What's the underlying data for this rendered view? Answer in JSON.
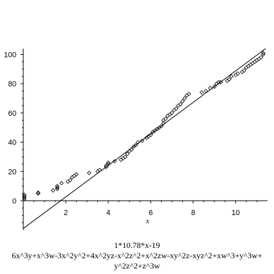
{
  "chart_data": {
    "type": "scatter",
    "xlabel": "x",
    "ylabel": "",
    "xlim": [
      0,
      11.5
    ],
    "ylim": [
      -20,
      104
    ],
    "x_ticks": [
      2,
      4,
      6,
      8,
      10
    ],
    "y_ticks": [
      0,
      20,
      40,
      60,
      80,
      100
    ],
    "grid": false,
    "points": [
      [
        0.05,
        1
      ],
      [
        0.05,
        2
      ],
      [
        0.05,
        3
      ],
      [
        0.05,
        4
      ],
      [
        0.7,
        5
      ],
      [
        0.7,
        5.5
      ],
      [
        1.4,
        7
      ],
      [
        1.6,
        8
      ],
      [
        1.6,
        9
      ],
      [
        1.6,
        10
      ],
      [
        1.8,
        12
      ],
      [
        2.1,
        13
      ],
      [
        2.2,
        14
      ],
      [
        2.3,
        16
      ],
      [
        2.4,
        17
      ],
      [
        2.5,
        18
      ],
      [
        3.1,
        19
      ],
      [
        3.5,
        20
      ],
      [
        3.6,
        21
      ],
      [
        3.9,
        23
      ],
      [
        3.9,
        24
      ],
      [
        4.0,
        25
      ],
      [
        4.0,
        26
      ],
      [
        4.3,
        27
      ],
      [
        4.6,
        28
      ],
      [
        4.7,
        29
      ],
      [
        4.8,
        30
      ],
      [
        4.9,
        32
      ],
      [
        5.0,
        34
      ],
      [
        5.1,
        35
      ],
      [
        5.2,
        37
      ],
      [
        5.3,
        38
      ],
      [
        5.4,
        40
      ],
      [
        5.6,
        41
      ],
      [
        5.8,
        43
      ],
      [
        5.9,
        44
      ],
      [
        6.0,
        45
      ],
      [
        6.1,
        47
      ],
      [
        6.2,
        48
      ],
      [
        6.3,
        49
      ],
      [
        6.4,
        50
      ],
      [
        6.5,
        51
      ],
      [
        6.6,
        53
      ],
      [
        6.6,
        55
      ],
      [
        6.7,
        56
      ],
      [
        6.8,
        58
      ],
      [
        6.9,
        59
      ],
      [
        7.0,
        60
      ],
      [
        7.1,
        62
      ],
      [
        7.2,
        63
      ],
      [
        7.3,
        65
      ],
      [
        7.4,
        66
      ],
      [
        7.5,
        68
      ],
      [
        7.6,
        70
      ],
      [
        7.7,
        72
      ],
      [
        7.8,
        73
      ],
      [
        8.4,
        74
      ],
      [
        8.6,
        75
      ],
      [
        8.8,
        77
      ],
      [
        9.0,
        78
      ],
      [
        9.1,
        80
      ],
      [
        9.2,
        81
      ],
      [
        9.3,
        81
      ],
      [
        9.6,
        82
      ],
      [
        9.7,
        83
      ],
      [
        9.8,
        85
      ],
      [
        10.0,
        86
      ],
      [
        10.1,
        87
      ],
      [
        10.3,
        88
      ],
      [
        10.4,
        89
      ],
      [
        10.5,
        91
      ],
      [
        10.6,
        92
      ],
      [
        10.7,
        93
      ],
      [
        10.8,
        94
      ],
      [
        10.9,
        95
      ],
      [
        11.0,
        96
      ],
      [
        11.1,
        97
      ],
      [
        11.2,
        98
      ],
      [
        11.3,
        100
      ],
      [
        11.3,
        101
      ]
    ],
    "line": {
      "slope": 10.78,
      "intercept": -19
    }
  },
  "caption": {
    "line1": "1*10.78*x-19",
    "line2": "6x^3y+x^3w-3x^2y^2+4x^2yz-x^2z^2+x^2zw-xy^2z-xyz^2+xw^3+y^3w+",
    "line3": "y^2z^2+z^3w"
  }
}
